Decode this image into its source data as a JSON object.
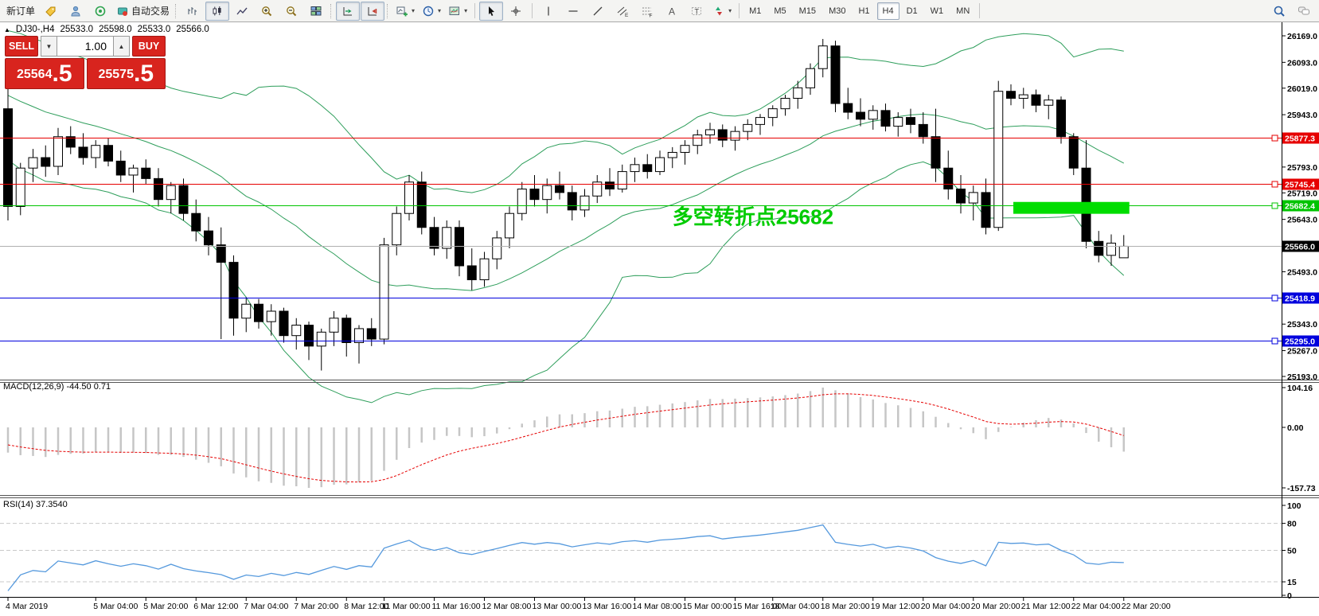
{
  "toolbar": {
    "new_order": "新订单",
    "autotrading": "自动交易",
    "timeframes": [
      "M1",
      "M5",
      "M15",
      "M30",
      "H1",
      "H4",
      "D1",
      "W1",
      "MN"
    ],
    "active_timeframe": "H4"
  },
  "chart_header": {
    "title": "DJ30-,H4",
    "open": "25533.0",
    "high": "25598.0",
    "low": "25533.0",
    "close": "25566.0"
  },
  "trade_panel": {
    "sell_label": "SELL",
    "buy_label": "BUY",
    "volume": "1.00",
    "sell_price_main": "25564",
    "sell_price_frac": ".5",
    "buy_price_main": "25575",
    "buy_price_frac": ".5"
  },
  "chart_data": {
    "type": "candlestick",
    "symbol": "DJ30-",
    "timeframe": "H4",
    "price_axis_range": [
      25193,
      26169
    ],
    "price_ticks": [
      26169.0,
      26093.0,
      26019.0,
      25943.0,
      25793.0,
      25719.0,
      25643.0,
      25493.0,
      25343.0,
      25267.0,
      25193.0
    ],
    "horizontal_levels": [
      {
        "price": 25877.3,
        "label": "25877.3",
        "color": "#e60000",
        "current": false
      },
      {
        "price": 25745.4,
        "label": "25745.4",
        "color": "#e60000",
        "current": false
      },
      {
        "price": 25682.4,
        "label": "25682.4",
        "color": "#00c400",
        "current": false
      },
      {
        "price": 25566.0,
        "label": "25566.0",
        "color": "#b0b0b0",
        "current": true
      },
      {
        "price": 25418.9,
        "label": "25418.9",
        "color": "#0000dd",
        "current": false
      },
      {
        "price": 25295.0,
        "label": "25295.0",
        "color": "#0000dd",
        "current": false
      }
    ],
    "bollinger": {
      "period": 20,
      "deviation": 2,
      "color": "#2e9e5b"
    },
    "annotations": [
      {
        "type": "text",
        "text": "多空转折点25682",
        "color": "#00cc00",
        "bar": 53,
        "price": 25630
      },
      {
        "type": "rect",
        "color": "#00dd00",
        "bar_start": 80,
        "bar_end": 89,
        "price_top": 25693,
        "price_bottom": 25659
      }
    ],
    "candles_ohlc": [
      [
        25960,
        26025,
        25640,
        25680
      ],
      [
        25680,
        25805,
        25655,
        25790
      ],
      [
        25790,
        25845,
        25750,
        25820
      ],
      [
        25820,
        25855,
        25765,
        25795
      ],
      [
        25795,
        25905,
        25770,
        25880
      ],
      [
        25880,
        25910,
        25830,
        25850
      ],
      [
        25850,
        25890,
        25800,
        25820
      ],
      [
        25820,
        25870,
        25790,
        25855
      ],
      [
        25855,
        25875,
        25795,
        25810
      ],
      [
        25810,
        25840,
        25750,
        25770
      ],
      [
        25770,
        25800,
        25720,
        25790
      ],
      [
        25790,
        25815,
        25745,
        25760
      ],
      [
        25760,
        25790,
        25680,
        25700
      ],
      [
        25700,
        25750,
        25660,
        25740
      ],
      [
        25740,
        25760,
        25640,
        25660
      ],
      [
        25660,
        25700,
        25580,
        25610
      ],
      [
        25610,
        25650,
        25540,
        25570
      ],
      [
        25570,
        25620,
        25300,
        25520
      ],
      [
        25520,
        25540,
        25310,
        25360
      ],
      [
        25360,
        25420,
        25320,
        25400
      ],
      [
        25400,
        25415,
        25330,
        25350
      ],
      [
        25350,
        25400,
        25310,
        25380
      ],
      [
        25380,
        25390,
        25290,
        25310
      ],
      [
        25310,
        25360,
        25270,
        25340
      ],
      [
        25340,
        25350,
        25240,
        25280
      ],
      [
        25280,
        25330,
        25210,
        25320
      ],
      [
        25320,
        25380,
        25280,
        25360
      ],
      [
        25360,
        25370,
        25250,
        25290
      ],
      [
        25290,
        25340,
        25230,
        25330
      ],
      [
        25330,
        25360,
        25280,
        25300
      ],
      [
        25300,
        25590,
        25285,
        25570
      ],
      [
        25570,
        25680,
        25540,
        25660
      ],
      [
        25660,
        25770,
        25640,
        25750
      ],
      [
        25750,
        25780,
        25600,
        25620
      ],
      [
        25620,
        25650,
        25540,
        25560
      ],
      [
        25560,
        25640,
        25530,
        25620
      ],
      [
        25620,
        25640,
        25480,
        25510
      ],
      [
        25510,
        25560,
        25440,
        25470
      ],
      [
        25470,
        25550,
        25450,
        25530
      ],
      [
        25530,
        25610,
        25500,
        25590
      ],
      [
        25590,
        25680,
        25560,
        25660
      ],
      [
        25660,
        25750,
        25640,
        25730
      ],
      [
        25730,
        25770,
        25680,
        25700
      ],
      [
        25700,
        25760,
        25660,
        25740
      ],
      [
        25740,
        25780,
        25700,
        25720
      ],
      [
        25720,
        25740,
        25640,
        25670
      ],
      [
        25670,
        25730,
        25650,
        25710
      ],
      [
        25710,
        25770,
        25690,
        25750
      ],
      [
        25750,
        25790,
        25710,
        25730
      ],
      [
        25730,
        25800,
        25720,
        25780
      ],
      [
        25780,
        25820,
        25750,
        25800
      ],
      [
        25800,
        25830,
        25760,
        25780
      ],
      [
        25780,
        25840,
        25770,
        25820
      ],
      [
        25820,
        25850,
        25790,
        25835
      ],
      [
        25835,
        25870,
        25800,
        25855
      ],
      [
        25855,
        25900,
        25830,
        25885
      ],
      [
        25885,
        25920,
        25860,
        25900
      ],
      [
        25900,
        25915,
        25850,
        25870
      ],
      [
        25870,
        25910,
        25840,
        25895
      ],
      [
        25895,
        25930,
        25870,
        25915
      ],
      [
        25915,
        25945,
        25885,
        25935
      ],
      [
        25935,
        25970,
        25910,
        25960
      ],
      [
        25960,
        26000,
        25940,
        25990
      ],
      [
        25990,
        26040,
        25960,
        26020
      ],
      [
        26020,
        26090,
        26000,
        26075
      ],
      [
        26075,
        26160,
        26050,
        26140
      ],
      [
        26140,
        26155,
        25950,
        25975
      ],
      [
        25975,
        26020,
        25930,
        25950
      ],
      [
        25950,
        25990,
        25910,
        25930
      ],
      [
        25930,
        25970,
        25900,
        25955
      ],
      [
        25955,
        25975,
        25895,
        25910
      ],
      [
        25910,
        25950,
        25880,
        25935
      ],
      [
        25935,
        25960,
        25890,
        25915
      ],
      [
        25915,
        25950,
        25860,
        25880
      ],
      [
        25880,
        25960,
        25750,
        25790
      ],
      [
        25790,
        25840,
        25700,
        25730
      ],
      [
        25730,
        25770,
        25660,
        25690
      ],
      [
        25690,
        25740,
        25640,
        25720
      ],
      [
        25720,
        25760,
        25600,
        25620
      ],
      [
        25620,
        26040,
        25610,
        26010
      ],
      [
        26010,
        26030,
        25970,
        25990
      ],
      [
        25990,
        26020,
        25960,
        26000
      ],
      [
        26000,
        26015,
        25950,
        25970
      ],
      [
        25970,
        26000,
        25930,
        25985
      ],
      [
        25985,
        25995,
        25860,
        25880
      ],
      [
        25880,
        25890,
        25770,
        25790
      ],
      [
        25790,
        25870,
        25560,
        25580
      ],
      [
        25580,
        25610,
        25520,
        25540
      ],
      [
        25540,
        25600,
        25510,
        25575
      ],
      [
        25533,
        25598,
        25533,
        25566
      ]
    ],
    "macd": {
      "label": "MACD(12,26,9) -44.50 0.71",
      "params": [
        12,
        26,
        9
      ],
      "value": -44.5,
      "signal_value": 0.71,
      "axis_ticks": [
        {
          "label": "104.16",
          "value": 104.16
        },
        {
          "label": "0.00",
          "value": 0
        },
        {
          "label": "-157.73",
          "value": -157.73
        }
      ],
      "histogram_color": "#c6c6c6",
      "signal_color": "#e60000"
    },
    "rsi": {
      "label": "RSI(14) 37.3540",
      "period": 14,
      "value": 37.354,
      "axis_ticks": [
        {
          "label": "100",
          "value": 100
        },
        {
          "label": "80",
          "value": 80
        },
        {
          "label": "50",
          "value": 50
        },
        {
          "label": "15",
          "value": 15
        },
        {
          "label": "0",
          "value": 0
        }
      ],
      "level_lines": [
        80,
        50,
        15
      ],
      "line_color": "#5599dd"
    },
    "time_labels": [
      {
        "label": "4 Mar 2019",
        "bar": 0
      },
      {
        "label": "5 Mar 04:00",
        "bar": 7
      },
      {
        "label": "5 Mar 20:00",
        "bar": 11
      },
      {
        "label": "6 Mar 12:00",
        "bar": 15
      },
      {
        "label": "7 Mar 04:00",
        "bar": 19
      },
      {
        "label": "7 Mar 20:00",
        "bar": 23
      },
      {
        "label": "8 Mar 12:00",
        "bar": 27
      },
      {
        "label": "11 Mar 00:00",
        "bar": 30
      },
      {
        "label": "11 Mar 16:00",
        "bar": 34
      },
      {
        "label": "12 Mar 08:00",
        "bar": 38
      },
      {
        "label": "13 Mar 00:00",
        "bar": 42
      },
      {
        "label": "13 Mar 16:00",
        "bar": 46
      },
      {
        "label": "14 Mar 08:00",
        "bar": 50
      },
      {
        "label": "15 Mar 00:00",
        "bar": 54
      },
      {
        "label": "15 Mar 16:00",
        "bar": 58
      },
      {
        "label": "18 Mar 04:00",
        "bar": 61
      },
      {
        "label": "18 Mar 20:00",
        "bar": 65
      },
      {
        "label": "19 Mar 12:00",
        "bar": 69
      },
      {
        "label": "20 Mar 04:00",
        "bar": 73
      },
      {
        "label": "20 Mar 20:00",
        "bar": 77
      },
      {
        "label": "21 Mar 12:00",
        "bar": 81
      },
      {
        "label": "22 Mar 04:00",
        "bar": 85
      },
      {
        "label": "22 Mar 20:00",
        "bar": 89
      }
    ]
  }
}
